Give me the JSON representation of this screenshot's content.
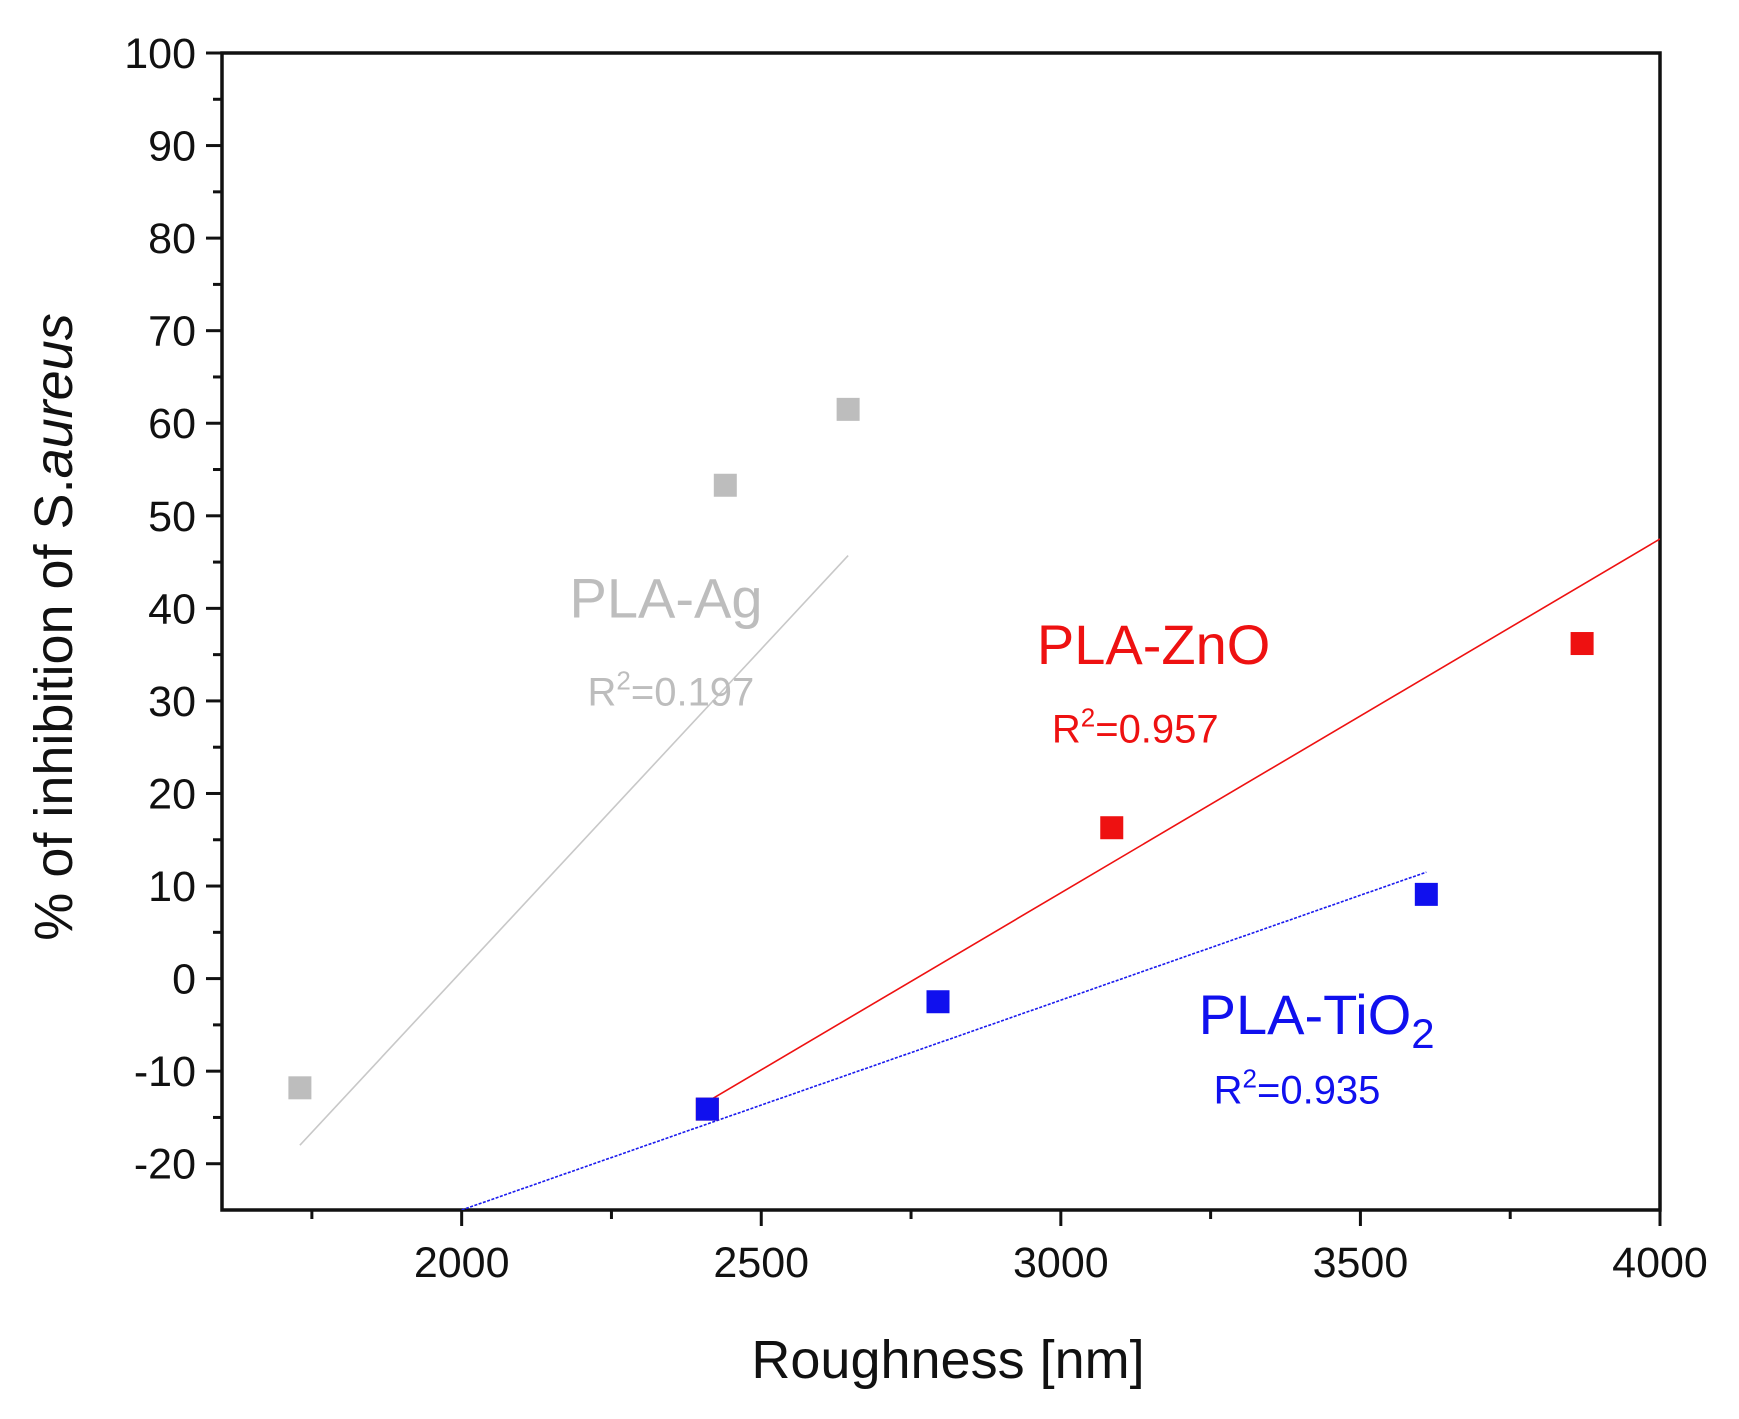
{
  "chart_data": {
    "type": "scatter",
    "title": "",
    "xlabel": "Roughness [nm]",
    "ylabel": {
      "prefix": "% of inhibition of ",
      "species": "S.",
      "species_italic": "aureus"
    },
    "xlim": [
      1600,
      4000
    ],
    "ylim": [
      -25,
      100
    ],
    "xticks": [
      2000,
      2500,
      3000,
      3500,
      4000
    ],
    "xticks_minor": [
      1750,
      2250,
      2750,
      3250,
      3750
    ],
    "yticks": [
      100,
      90,
      80,
      70,
      60,
      50,
      40,
      30,
      20,
      10,
      0,
      -10,
      -20
    ],
    "series": [
      {
        "name": "PLA-Ag",
        "label_main": "PLA-Ag",
        "label_sub": "",
        "r2_prefix": "R",
        "r2_sup": "2",
        "r2_value": "=0.197",
        "color": "#bdbdbd",
        "fit_color": "#c8c8c8",
        "points": [
          {
            "x": 1730,
            "y": -11.8
          },
          {
            "x": 2440,
            "y": 53.3
          },
          {
            "x": 2645,
            "y": 61.5
          }
        ],
        "fit": [
          {
            "x": 1730,
            "y": -18
          },
          {
            "x": 2645,
            "y": 45.7
          }
        ]
      },
      {
        "name": "PLA-ZnO",
        "label_main": "PLA-ZnO",
        "label_sub": "",
        "r2_prefix": "R",
        "r2_sup": "2",
        "r2_value": "=0.957",
        "color": "#ee1111",
        "fit_color": "#ee1111",
        "points": [
          {
            "x": 2410,
            "y": -14.1
          },
          {
            "x": 3085,
            "y": 16.3
          },
          {
            "x": 3870,
            "y": 36.2
          }
        ],
        "fit": [
          {
            "x": 2410,
            "y": -13.3
          },
          {
            "x": 4000,
            "y": 47.5
          }
        ]
      },
      {
        "name": "PLA-TiO2",
        "label_main": "PLA-TiO",
        "label_sub": "2",
        "r2_prefix": "R",
        "r2_sup": "2",
        "r2_value": "=0.935",
        "color": "#1010ee",
        "fit_color": "#1a1aee",
        "points": [
          {
            "x": 2410,
            "y": -14.1
          },
          {
            "x": 2795,
            "y": -2.5
          },
          {
            "x": 3610,
            "y": 9.1
          }
        ],
        "fit": [
          {
            "x": 2000,
            "y": -25
          },
          {
            "x": 3610,
            "y": 11.5
          }
        ]
      }
    ],
    "annotations": [
      {
        "series": "PLA-Ag",
        "label_x": 2180,
        "label_y": 39,
        "r2_x": 2210,
        "r2_y": 29.5
      },
      {
        "series": "PLA-ZnO",
        "label_x": 2960,
        "label_y": 34,
        "r2_x": 2985,
        "r2_y": 25.5
      },
      {
        "series": "PLA-TiO2",
        "label_x": 3230,
        "label_y": -6,
        "r2_x": 3255,
        "r2_y": -13.5
      }
    ]
  }
}
